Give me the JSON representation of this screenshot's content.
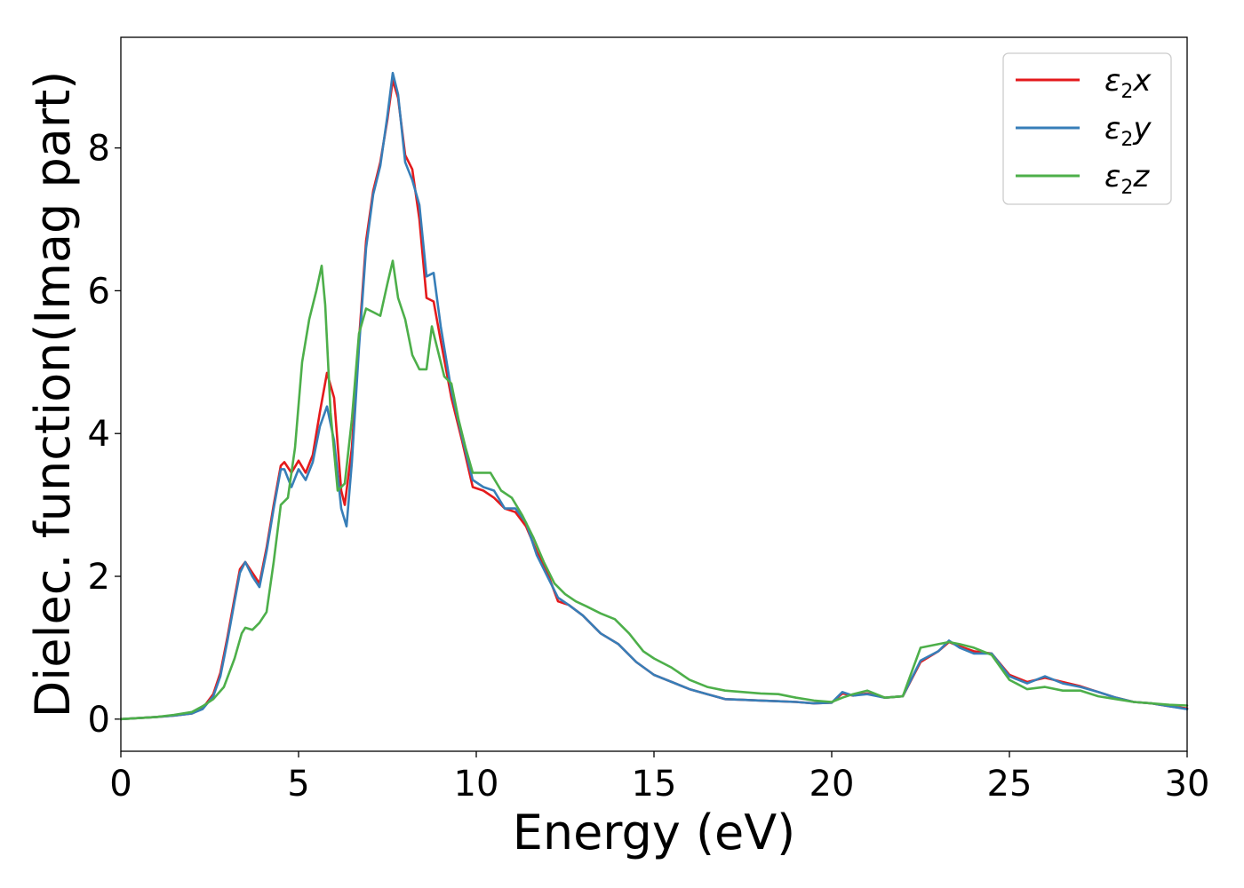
{
  "chart_data": {
    "type": "line",
    "xlabel": "Energy (eV)",
    "ylabel": "Dielec. function(Imag part)",
    "xlim": [
      0,
      30
    ],
    "ylim": [
      -0.45,
      9.55
    ],
    "xticks": [
      0,
      5,
      10,
      15,
      20,
      25,
      30
    ],
    "yticks": [
      0,
      2,
      4,
      6,
      8
    ],
    "grid": false,
    "legend_position": "top-right",
    "series": [
      {
        "name": "ε₂x",
        "legend_main": "ε",
        "legend_sub": "2",
        "legend_suffix": "x",
        "color": "#e41a1c",
        "x": [
          0,
          1.0,
          1.5,
          2.0,
          2.3,
          2.6,
          2.8,
          3.0,
          3.2,
          3.35,
          3.5,
          3.7,
          3.9,
          4.1,
          4.3,
          4.5,
          4.6,
          4.8,
          5.0,
          5.2,
          5.4,
          5.6,
          5.8,
          6.0,
          6.2,
          6.3,
          6.5,
          6.7,
          6.9,
          7.1,
          7.3,
          7.5,
          7.65,
          7.8,
          8.0,
          8.2,
          8.4,
          8.6,
          8.8,
          9.0,
          9.3,
          9.6,
          9.9,
          10.2,
          10.5,
          10.8,
          11.1,
          11.4,
          11.7,
          12.0,
          12.3,
          12.6,
          13.0,
          13.5,
          14.0,
          14.5,
          15.0,
          15.5,
          16.0,
          16.5,
          17.0,
          17.5,
          18.0,
          18.5,
          19.0,
          19.5,
          20.0,
          20.3,
          20.6,
          21.0,
          21.5,
          22.0,
          22.5,
          23.0,
          23.3,
          23.6,
          24.0,
          24.5,
          25.0,
          25.5,
          26.0,
          26.5,
          27.0,
          27.5,
          28.0,
          28.5,
          29.0,
          29.5,
          30.0
        ],
        "y": [
          0.0,
          0.03,
          0.05,
          0.08,
          0.15,
          0.35,
          0.65,
          1.15,
          1.7,
          2.1,
          2.2,
          2.05,
          1.9,
          2.4,
          3.0,
          3.55,
          3.6,
          3.45,
          3.62,
          3.45,
          3.7,
          4.3,
          4.85,
          4.5,
          3.2,
          3.0,
          3.8,
          5.3,
          6.7,
          7.4,
          7.8,
          8.4,
          8.95,
          8.7,
          7.9,
          7.7,
          7.0,
          5.9,
          5.85,
          5.3,
          4.5,
          3.9,
          3.25,
          3.2,
          3.1,
          2.95,
          2.9,
          2.7,
          2.35,
          2.05,
          1.65,
          1.6,
          1.45,
          1.2,
          1.05,
          0.8,
          0.62,
          0.52,
          0.42,
          0.35,
          0.28,
          0.27,
          0.26,
          0.25,
          0.24,
          0.22,
          0.23,
          0.36,
          0.33,
          0.36,
          0.3,
          0.32,
          0.8,
          0.95,
          1.08,
          1.02,
          0.95,
          0.92,
          0.62,
          0.52,
          0.58,
          0.52,
          0.46,
          0.38,
          0.3,
          0.24,
          0.22,
          0.18,
          0.15
        ]
      },
      {
        "name": "ε₂y",
        "legend_main": "ε",
        "legend_sub": "2",
        "legend_suffix": "y",
        "color": "#377eb8",
        "x": [
          0,
          1.0,
          1.5,
          2.0,
          2.3,
          2.6,
          2.8,
          3.0,
          3.2,
          3.35,
          3.5,
          3.7,
          3.9,
          4.1,
          4.3,
          4.5,
          4.6,
          4.8,
          5.0,
          5.2,
          5.4,
          5.6,
          5.8,
          6.0,
          6.2,
          6.35,
          6.5,
          6.7,
          6.9,
          7.1,
          7.3,
          7.5,
          7.65,
          7.8,
          8.0,
          8.2,
          8.4,
          8.6,
          8.8,
          9.0,
          9.3,
          9.6,
          9.9,
          10.2,
          10.5,
          10.8,
          11.1,
          11.4,
          11.7,
          12.0,
          12.3,
          12.6,
          13.0,
          13.5,
          14.0,
          14.5,
          15.0,
          15.5,
          16.0,
          16.5,
          17.0,
          17.5,
          18.0,
          18.5,
          19.0,
          19.5,
          20.0,
          20.3,
          20.6,
          21.0,
          21.5,
          22.0,
          22.5,
          23.0,
          23.3,
          23.6,
          24.0,
          24.5,
          25.0,
          25.5,
          26.0,
          26.5,
          27.0,
          27.5,
          28.0,
          28.5,
          29.0,
          29.5,
          30.0
        ],
        "y": [
          0.0,
          0.03,
          0.05,
          0.08,
          0.14,
          0.32,
          0.6,
          1.1,
          1.65,
          2.05,
          2.2,
          2.0,
          1.85,
          2.35,
          2.95,
          3.5,
          3.5,
          3.25,
          3.5,
          3.35,
          3.6,
          4.1,
          4.38,
          3.9,
          2.95,
          2.7,
          3.6,
          5.2,
          6.6,
          7.35,
          7.75,
          8.45,
          9.05,
          8.75,
          7.8,
          7.55,
          7.2,
          6.2,
          6.25,
          5.5,
          4.6,
          3.95,
          3.35,
          3.25,
          3.2,
          2.95,
          2.95,
          2.75,
          2.3,
          2.0,
          1.7,
          1.6,
          1.45,
          1.2,
          1.05,
          0.8,
          0.62,
          0.52,
          0.42,
          0.35,
          0.28,
          0.27,
          0.26,
          0.25,
          0.24,
          0.22,
          0.23,
          0.38,
          0.33,
          0.35,
          0.3,
          0.32,
          0.82,
          0.95,
          1.1,
          1.0,
          0.92,
          0.92,
          0.6,
          0.5,
          0.6,
          0.5,
          0.45,
          0.38,
          0.3,
          0.24,
          0.22,
          0.18,
          0.14
        ]
      },
      {
        "name": "ε₂z",
        "legend_main": "ε",
        "legend_sub": "2",
        "legend_suffix": "z",
        "color": "#4daf4a",
        "x": [
          0,
          1.0,
          1.5,
          2.0,
          2.3,
          2.6,
          2.9,
          3.2,
          3.4,
          3.5,
          3.7,
          3.9,
          4.1,
          4.3,
          4.5,
          4.7,
          4.9,
          5.1,
          5.3,
          5.5,
          5.65,
          5.75,
          5.9,
          6.1,
          6.3,
          6.5,
          6.7,
          6.9,
          7.1,
          7.3,
          7.5,
          7.65,
          7.8,
          8.0,
          8.2,
          8.4,
          8.6,
          8.75,
          8.9,
          9.1,
          9.3,
          9.5,
          9.7,
          9.9,
          10.1,
          10.4,
          10.7,
          11.0,
          11.3,
          11.6,
          11.9,
          12.2,
          12.5,
          12.8,
          13.1,
          13.5,
          13.9,
          14.3,
          14.7,
          15.0,
          15.5,
          16.0,
          16.5,
          17.0,
          17.5,
          18.0,
          18.5,
          19.0,
          19.5,
          20.0,
          20.3,
          20.6,
          21.0,
          21.5,
          22.0,
          22.5,
          23.0,
          23.3,
          23.6,
          24.0,
          24.5,
          25.0,
          25.5,
          26.0,
          26.5,
          27.0,
          27.5,
          28.0,
          28.5,
          29.0,
          29.5,
          30.0
        ],
        "y": [
          0.0,
          0.03,
          0.06,
          0.1,
          0.18,
          0.28,
          0.45,
          0.85,
          1.2,
          1.28,
          1.25,
          1.35,
          1.5,
          2.2,
          3.0,
          3.1,
          3.8,
          5.0,
          5.6,
          6.0,
          6.35,
          5.8,
          4.3,
          3.2,
          3.3,
          4.2,
          5.4,
          5.75,
          5.7,
          5.65,
          6.1,
          6.42,
          5.9,
          5.6,
          5.1,
          4.9,
          4.9,
          5.5,
          5.2,
          4.8,
          4.7,
          4.2,
          3.8,
          3.45,
          3.45,
          3.45,
          3.2,
          3.1,
          2.85,
          2.55,
          2.2,
          1.9,
          1.75,
          1.65,
          1.58,
          1.48,
          1.4,
          1.2,
          0.95,
          0.85,
          0.72,
          0.55,
          0.45,
          0.4,
          0.38,
          0.36,
          0.35,
          0.3,
          0.26,
          0.24,
          0.3,
          0.35,
          0.4,
          0.3,
          0.32,
          1.0,
          1.05,
          1.08,
          1.05,
          1.0,
          0.9,
          0.55,
          0.42,
          0.45,
          0.4,
          0.4,
          0.32,
          0.28,
          0.24,
          0.22,
          0.2,
          0.19
        ]
      }
    ]
  }
}
